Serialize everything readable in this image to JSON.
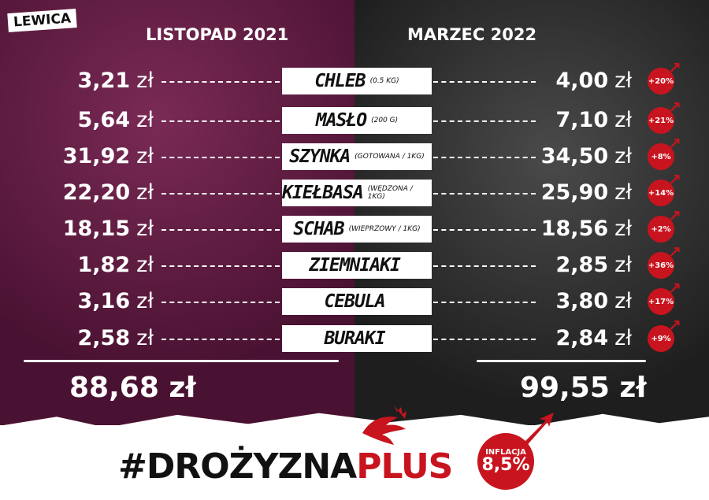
{
  "logo": "LEWICA",
  "headers": {
    "left": "LISTOPAD 2021",
    "right": "MARZEC 2022"
  },
  "currency": "zł",
  "items": [
    {
      "name": "CHLEB",
      "spec": "(0.5 KG)",
      "nov2021": "3,21",
      "mar2022": "4,00",
      "change": "+20%"
    },
    {
      "name": "MASŁO",
      "spec": "(200 G)",
      "nov2021": "5,64",
      "mar2022": "7,10",
      "change": "+21%"
    },
    {
      "name": "SZYNKA",
      "spec": "(GOTOWANA / 1KG)",
      "nov2021": "31,92",
      "mar2022": "34,50",
      "change": "+8%"
    },
    {
      "name": "KIEŁBASA",
      "spec": "(WĘDZONA / 1KG)",
      "nov2021": "22,20",
      "mar2022": "25,90",
      "change": "+14%"
    },
    {
      "name": "SCHAB",
      "spec": "(WIEPRZOWY / 1KG)",
      "nov2021": "18,15",
      "mar2022": "18,56",
      "change": "+2%"
    },
    {
      "name": "ZIEMNIAKI",
      "spec": "",
      "nov2021": "1,82",
      "mar2022": "2,85",
      "change": "+36%"
    },
    {
      "name": "CEBULA",
      "spec": "",
      "nov2021": "3,16",
      "mar2022": "3,80",
      "change": "+17%"
    },
    {
      "name": "BURAKI",
      "spec": "",
      "nov2021": "2,58",
      "mar2022": "2,84",
      "change": "+9%"
    }
  ],
  "totals": {
    "left": "88,68 zł",
    "right": "99,55 zł"
  },
  "hashtag": {
    "main": "#DROŻYZNA",
    "accent": "PLUS"
  },
  "inflation": {
    "label": "INFLACJA",
    "value": "8,5%"
  },
  "colors": {
    "accent": "#c8141e",
    "left_bg": "#5a1a3a",
    "right_bg": "#2a2a2a"
  }
}
